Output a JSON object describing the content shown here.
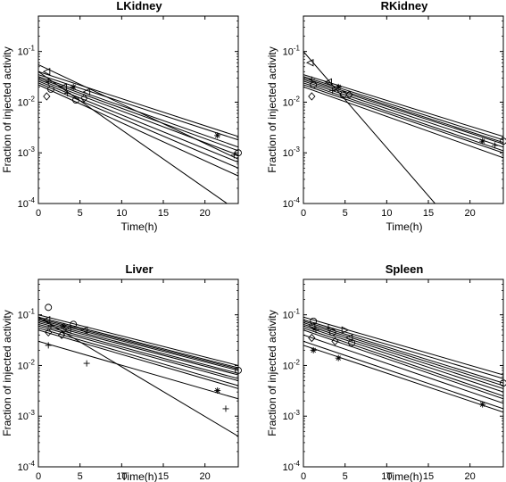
{
  "chart_data": [
    {
      "type": "scatter",
      "title": "LKidney",
      "xlabel": "Time(h)",
      "ylabel": "Fraction of injected activity",
      "xlim": [
        0,
        24
      ],
      "ylim": [
        0.0001,
        0.5
      ],
      "yscale": "log",
      "xticks": [
        "0",
        "5",
        "10",
        "15",
        "20"
      ],
      "yticks": [
        "10-4",
        "10-3",
        "10-2",
        "10-1"
      ],
      "fit_lines": [
        {
          "x": [
            0,
            24
          ],
          "y": [
            0.055,
            0.00075
          ]
        },
        {
          "x": [
            0,
            24
          ],
          "y": [
            0.04,
            0.0021
          ]
        },
        {
          "x": [
            0,
            24
          ],
          "y": [
            0.035,
            0.0018
          ]
        },
        {
          "x": [
            0,
            24
          ],
          "y": [
            0.032,
            0.0013
          ]
        },
        {
          "x": [
            0,
            24
          ],
          "y": [
            0.03,
            0.0011
          ]
        },
        {
          "x": [
            0,
            24
          ],
          "y": [
            0.028,
            0.0009
          ]
        },
        {
          "x": [
            0,
            24
          ],
          "y": [
            0.026,
            0.00065
          ]
        },
        {
          "x": [
            0,
            24
          ],
          "y": [
            0.024,
            0.0005
          ]
        },
        {
          "x": [
            0,
            24
          ],
          "y": [
            0.022,
            0.00035
          ]
        },
        {
          "x": [
            0,
            24
          ],
          "y": [
            0.04,
            7e-05
          ]
        }
      ],
      "points": [
        {
          "x": 1.0,
          "y": 0.04,
          "m": "triangle-left"
        },
        {
          "x": 1.2,
          "y": 0.025,
          "m": "plus"
        },
        {
          "x": 1.5,
          "y": 0.018,
          "m": "circle"
        },
        {
          "x": 1.0,
          "y": 0.013,
          "m": "diamond"
        },
        {
          "x": 3.0,
          "y": 0.02,
          "m": "triangle-left"
        },
        {
          "x": 3.5,
          "y": 0.015,
          "m": "plus"
        },
        {
          "x": 4.2,
          "y": 0.02,
          "m": "star"
        },
        {
          "x": 4.5,
          "y": 0.011,
          "m": "circle"
        },
        {
          "x": 5.5,
          "y": 0.012,
          "m": "diamond"
        },
        {
          "x": 5.8,
          "y": 0.016,
          "m": "triangle-left"
        },
        {
          "x": 21.5,
          "y": 0.0022,
          "m": "star"
        },
        {
          "x": 23.5,
          "y": 0.0009,
          "m": "plus"
        },
        {
          "x": 24.0,
          "y": 0.001,
          "m": "circle"
        }
      ]
    },
    {
      "type": "scatter",
      "title": "RKidney",
      "xlabel": "Time(h)",
      "ylabel": "Fraction of injected activity",
      "xlim": [
        0,
        24
      ],
      "ylim": [
        0.0001,
        0.5
      ],
      "yscale": "log",
      "xticks": [
        "0",
        "5",
        "10",
        "15",
        "20"
      ],
      "yticks": [
        "10-4",
        "10-3",
        "10-2",
        "10-1"
      ],
      "fit_lines": [
        {
          "x": [
            0,
            24
          ],
          "y": [
            0.035,
            0.0021
          ]
        },
        {
          "x": [
            0,
            24
          ],
          "y": [
            0.032,
            0.0018
          ]
        },
        {
          "x": [
            0,
            24
          ],
          "y": [
            0.03,
            0.0016
          ]
        },
        {
          "x": [
            0,
            24
          ],
          "y": [
            0.028,
            0.0015
          ]
        },
        {
          "x": [
            0,
            24
          ],
          "y": [
            0.026,
            0.0013
          ]
        },
        {
          "x": [
            0,
            24
          ],
          "y": [
            0.024,
            0.0011
          ]
        },
        {
          "x": [
            0,
            24
          ],
          "y": [
            0.022,
            0.001
          ]
        },
        {
          "x": [
            0,
            24
          ],
          "y": [
            0.02,
            0.0008
          ]
        },
        {
          "x": [
            0,
            15.8
          ],
          "y": [
            0.1,
            0.0001
          ]
        }
      ],
      "points": [
        {
          "x": 0.8,
          "y": 0.06,
          "m": "triangle-left"
        },
        {
          "x": 1.0,
          "y": 0.028,
          "m": "plus"
        },
        {
          "x": 1.2,
          "y": 0.022,
          "m": "circle"
        },
        {
          "x": 1.0,
          "y": 0.013,
          "m": "diamond"
        },
        {
          "x": 3.0,
          "y": 0.025,
          "m": "triangle-left"
        },
        {
          "x": 3.5,
          "y": 0.017,
          "m": "plus"
        },
        {
          "x": 4.2,
          "y": 0.02,
          "m": "star"
        },
        {
          "x": 4.8,
          "y": 0.014,
          "m": "circle"
        },
        {
          "x": 5.5,
          "y": 0.014,
          "m": "diamond"
        },
        {
          "x": 21.5,
          "y": 0.0017,
          "m": "star"
        },
        {
          "x": 23.0,
          "y": 0.0014,
          "m": "plus"
        },
        {
          "x": 24.0,
          "y": 0.0017,
          "m": "circle"
        }
      ]
    },
    {
      "type": "scatter",
      "title": "Liver",
      "xlabel": "Time(h)",
      "ylabel": "Fraction of injected activity",
      "xlim": [
        0,
        24
      ],
      "ylim": [
        0.0001,
        0.5
      ],
      "yscale": "log",
      "xticks": [
        "0",
        "5",
        "10",
        "15",
        "20"
      ],
      "yticks": [
        "10-4",
        "10-3",
        "10-2",
        "10-1"
      ],
      "fit_lines": [
        {
          "x": [
            0,
            24
          ],
          "y": [
            0.1,
            0.01
          ]
        },
        {
          "x": [
            0,
            24
          ],
          "y": [
            0.09,
            0.009
          ]
        },
        {
          "x": [
            0,
            24
          ],
          "y": [
            0.085,
            0.0085
          ]
        },
        {
          "x": [
            0,
            24
          ],
          "y": [
            0.08,
            0.008
          ]
        },
        {
          "x": [
            0,
            24
          ],
          "y": [
            0.075,
            0.007
          ]
        },
        {
          "x": [
            0,
            24
          ],
          "y": [
            0.07,
            0.0065
          ]
        },
        {
          "x": [
            0,
            24
          ],
          "y": [
            0.065,
            0.0055
          ]
        },
        {
          "x": [
            0,
            24
          ],
          "y": [
            0.06,
            0.005
          ]
        },
        {
          "x": [
            0,
            24
          ],
          "y": [
            0.055,
            0.004
          ]
        },
        {
          "x": [
            0,
            24
          ],
          "y": [
            0.05,
            0.0035
          ]
        },
        {
          "x": [
            0,
            24
          ],
          "y": [
            0.03,
            0.0022
          ]
        },
        {
          "x": [
            0,
            24
          ],
          "y": [
            0.09,
            0.0004
          ]
        }
      ],
      "points": [
        {
          "x": 1.2,
          "y": 0.14,
          "m": "circle"
        },
        {
          "x": 1.0,
          "y": 0.08,
          "m": "triangle-left"
        },
        {
          "x": 1.5,
          "y": 0.06,
          "m": "plus"
        },
        {
          "x": 1.2,
          "y": 0.045,
          "m": "diamond"
        },
        {
          "x": 1.2,
          "y": 0.025,
          "m": "plus"
        },
        {
          "x": 3.0,
          "y": 0.06,
          "m": "star"
        },
        {
          "x": 3.5,
          "y": 0.05,
          "m": "triangle-left"
        },
        {
          "x": 4.2,
          "y": 0.065,
          "m": "circle"
        },
        {
          "x": 2.8,
          "y": 0.04,
          "m": "diamond"
        },
        {
          "x": 5.5,
          "y": 0.05,
          "m": "triangle-left"
        },
        {
          "x": 5.8,
          "y": 0.011,
          "m": "plus"
        },
        {
          "x": 21.5,
          "y": 0.0032,
          "m": "star"
        },
        {
          "x": 22.5,
          "y": 0.0014,
          "m": "plus"
        },
        {
          "x": 24.0,
          "y": 0.008,
          "m": "circle"
        }
      ]
    },
    {
      "type": "scatter",
      "title": "Spleen",
      "xlabel": "Time(h)",
      "ylabel": "Fraction of injected activity",
      "xlim": [
        0,
        24
      ],
      "ylim": [
        0.0001,
        0.5
      ],
      "yscale": "log",
      "xticks": [
        "0",
        "5",
        "10",
        "15",
        "20"
      ],
      "yticks": [
        "10-4",
        "10-3",
        "10-2",
        "10-1"
      ],
      "fit_lines": [
        {
          "x": [
            0,
            24
          ],
          "y": [
            0.09,
            0.0065
          ]
        },
        {
          "x": [
            0,
            24
          ],
          "y": [
            0.08,
            0.0055
          ]
        },
        {
          "x": [
            0,
            24
          ],
          "y": [
            0.075,
            0.0045
          ]
        },
        {
          "x": [
            0,
            24
          ],
          "y": [
            0.07,
            0.004
          ]
        },
        {
          "x": [
            0,
            24
          ],
          "y": [
            0.065,
            0.0035
          ]
        },
        {
          "x": [
            0,
            24
          ],
          "y": [
            0.06,
            0.003
          ]
        },
        {
          "x": [
            0,
            24
          ],
          "y": [
            0.055,
            0.0025
          ]
        },
        {
          "x": [
            0,
            24
          ],
          "y": [
            0.05,
            0.0022
          ]
        },
        {
          "x": [
            0,
            24
          ],
          "y": [
            0.04,
            0.0018
          ]
        },
        {
          "x": [
            0,
            24
          ],
          "y": [
            0.03,
            0.0014
          ]
        },
        {
          "x": [
            0,
            24
          ],
          "y": [
            0.025,
            0.0012
          ]
        }
      ],
      "points": [
        {
          "x": 1.2,
          "y": 0.075,
          "m": "circle"
        },
        {
          "x": 1.0,
          "y": 0.06,
          "m": "triangle-left"
        },
        {
          "x": 1.5,
          "y": 0.05,
          "m": "plus"
        },
        {
          "x": 1.0,
          "y": 0.035,
          "m": "diamond"
        },
        {
          "x": 1.2,
          "y": 0.02,
          "m": "star"
        },
        {
          "x": 3.0,
          "y": 0.055,
          "m": "plus"
        },
        {
          "x": 3.5,
          "y": 0.045,
          "m": "circle"
        },
        {
          "x": 4.2,
          "y": 0.014,
          "m": "star"
        },
        {
          "x": 3.8,
          "y": 0.03,
          "m": "diamond"
        },
        {
          "x": 5.0,
          "y": 0.05,
          "m": "triangle-right"
        },
        {
          "x": 5.5,
          "y": 0.035,
          "m": "triangle-left"
        },
        {
          "x": 5.8,
          "y": 0.028,
          "m": "circle"
        },
        {
          "x": 21.5,
          "y": 0.0017,
          "m": "star"
        },
        {
          "x": 24.0,
          "y": 0.0045,
          "m": "circle"
        }
      ]
    }
  ]
}
